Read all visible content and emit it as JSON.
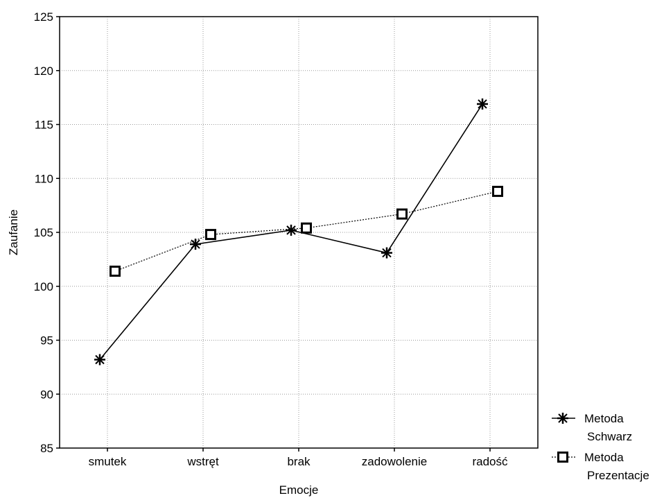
{
  "chart_data": {
    "type": "line",
    "xlabel": "Emocje",
    "ylabel": "Zaufanie",
    "categories": [
      "smutek",
      "wstręt",
      "brak",
      "zadowolenie",
      "radość"
    ],
    "ylim": [
      85,
      125
    ],
    "yticks": [
      85,
      90,
      95,
      100,
      105,
      110,
      115,
      120,
      125
    ],
    "grid": true,
    "legend_position": "bottom-right, outside plot",
    "series": [
      {
        "name_lines": [
          "Metoda",
          "Schwarz"
        ],
        "marker": "asterisk",
        "line_style": "solid",
        "values": [
          93.2,
          103.9,
          105.2,
          103.1,
          116.9
        ]
      },
      {
        "name_lines": [
          "Metoda",
          "Prezentacje"
        ],
        "marker": "open-square",
        "line_style": "dotted",
        "values": [
          101.4,
          104.8,
          105.4,
          106.7,
          108.8
        ]
      }
    ]
  }
}
